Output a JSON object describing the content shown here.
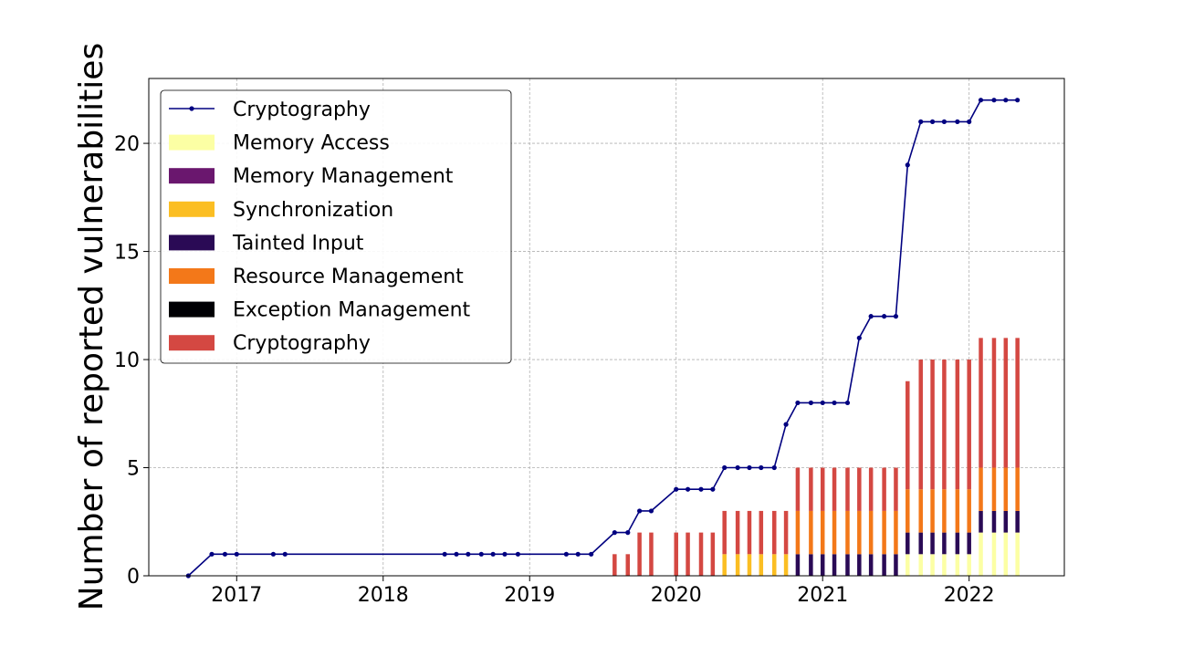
{
  "chart_data": {
    "type": "bar",
    "title": "",
    "xlabel": "",
    "ylabel": "Number of reported vulnerabilities",
    "xlim": [
      2016.4,
      2022.65
    ],
    "ylim": [
      0,
      23
    ],
    "x_ticks": [
      2017,
      2018,
      2019,
      2020,
      2021,
      2022
    ],
    "y_ticks": [
      0,
      5,
      10,
      15,
      20
    ],
    "grid": true,
    "legend_position": "upper-left",
    "line_series": {
      "name": "Cryptography",
      "color": "#000080",
      "points": [
        [
          2016.67,
          0
        ],
        [
          2016.83,
          1
        ],
        [
          2016.92,
          1
        ],
        [
          2017.0,
          1
        ],
        [
          2017.25,
          1
        ],
        [
          2017.33,
          1
        ],
        [
          2018.42,
          1
        ],
        [
          2018.5,
          1
        ],
        [
          2018.58,
          1
        ],
        [
          2018.67,
          1
        ],
        [
          2018.75,
          1
        ],
        [
          2018.83,
          1
        ],
        [
          2018.92,
          1
        ],
        [
          2019.25,
          1
        ],
        [
          2019.33,
          1
        ],
        [
          2019.42,
          1
        ],
        [
          2019.58,
          2
        ],
        [
          2019.67,
          2
        ],
        [
          2019.75,
          3
        ],
        [
          2019.83,
          3
        ],
        [
          2020.0,
          4
        ],
        [
          2020.08,
          4
        ],
        [
          2020.17,
          4
        ],
        [
          2020.25,
          4
        ],
        [
          2020.33,
          5
        ],
        [
          2020.42,
          5
        ],
        [
          2020.5,
          5
        ],
        [
          2020.58,
          5
        ],
        [
          2020.67,
          5
        ],
        [
          2020.75,
          7
        ],
        [
          2020.83,
          8
        ],
        [
          2020.92,
          8
        ],
        [
          2021.0,
          8
        ],
        [
          2021.08,
          8
        ],
        [
          2021.17,
          8
        ],
        [
          2021.25,
          11
        ],
        [
          2021.33,
          12
        ],
        [
          2021.42,
          12
        ],
        [
          2021.5,
          12
        ],
        [
          2021.58,
          19
        ],
        [
          2021.67,
          21
        ],
        [
          2021.75,
          21
        ],
        [
          2021.83,
          21
        ],
        [
          2021.92,
          21
        ],
        [
          2022.0,
          21
        ],
        [
          2022.08,
          22
        ],
        [
          2022.17,
          22
        ],
        [
          2022.25,
          22
        ],
        [
          2022.33,
          22
        ]
      ]
    },
    "stack_series": [
      {
        "name": "Memory Access",
        "color": "#fcffa4"
      },
      {
        "name": "Memory Management",
        "color": "#6a176e"
      },
      {
        "name": "Synchronization",
        "color": "#fbbe23"
      },
      {
        "name": "Tainted Input",
        "color": "#2a0a55"
      },
      {
        "name": "Resource Management",
        "color": "#f37819"
      },
      {
        "name": "Exception Management",
        "color": "#000004"
      },
      {
        "name": "Cryptography",
        "color": "#d44842"
      }
    ],
    "bars": [
      {
        "x": 2019.58,
        "values": {
          "Cryptography": 1
        }
      },
      {
        "x": 2019.67,
        "values": {
          "Cryptography": 1
        }
      },
      {
        "x": 2019.75,
        "values": {
          "Cryptography": 2
        }
      },
      {
        "x": 2019.83,
        "values": {
          "Cryptography": 2
        }
      },
      {
        "x": 2020.0,
        "values": {
          "Cryptography": 2
        }
      },
      {
        "x": 2020.08,
        "values": {
          "Cryptography": 2
        }
      },
      {
        "x": 2020.17,
        "values": {
          "Cryptography": 2
        }
      },
      {
        "x": 2020.25,
        "values": {
          "Cryptography": 2
        }
      },
      {
        "x": 2020.33,
        "values": {
          "Synchronization": 1,
          "Cryptography": 2
        }
      },
      {
        "x": 2020.42,
        "values": {
          "Synchronization": 1,
          "Cryptography": 2
        }
      },
      {
        "x": 2020.5,
        "values": {
          "Synchronization": 1,
          "Cryptography": 2
        }
      },
      {
        "x": 2020.58,
        "values": {
          "Synchronization": 1,
          "Cryptography": 2
        }
      },
      {
        "x": 2020.67,
        "values": {
          "Synchronization": 1,
          "Cryptography": 2
        }
      },
      {
        "x": 2020.75,
        "values": {
          "Synchronization": 1,
          "Cryptography": 2
        }
      },
      {
        "x": 2020.83,
        "values": {
          "Tainted Input": 1,
          "Resource Management": 2,
          "Cryptography": 2
        }
      },
      {
        "x": 2020.92,
        "values": {
          "Tainted Input": 1,
          "Resource Management": 2,
          "Cryptography": 2
        }
      },
      {
        "x": 2021.0,
        "values": {
          "Tainted Input": 1,
          "Resource Management": 2,
          "Cryptography": 2
        }
      },
      {
        "x": 2021.08,
        "values": {
          "Tainted Input": 1,
          "Resource Management": 2,
          "Cryptography": 2
        }
      },
      {
        "x": 2021.17,
        "values": {
          "Tainted Input": 1,
          "Resource Management": 2,
          "Cryptography": 2
        }
      },
      {
        "x": 2021.25,
        "values": {
          "Tainted Input": 1,
          "Resource Management": 2,
          "Cryptography": 2
        }
      },
      {
        "x": 2021.33,
        "values": {
          "Tainted Input": 1,
          "Resource Management": 2,
          "Cryptography": 2
        }
      },
      {
        "x": 2021.42,
        "values": {
          "Tainted Input": 1,
          "Resource Management": 2,
          "Cryptography": 2
        }
      },
      {
        "x": 2021.5,
        "values": {
          "Tainted Input": 1,
          "Resource Management": 2,
          "Cryptography": 2
        }
      },
      {
        "x": 2021.58,
        "values": {
          "Memory Access": 1,
          "Tainted Input": 1,
          "Resource Management": 2,
          "Cryptography": 5
        }
      },
      {
        "x": 2021.67,
        "values": {
          "Memory Access": 1,
          "Tainted Input": 1,
          "Resource Management": 2,
          "Cryptography": 6
        }
      },
      {
        "x": 2021.75,
        "values": {
          "Memory Access": 1,
          "Tainted Input": 1,
          "Resource Management": 2,
          "Cryptography": 6
        }
      },
      {
        "x": 2021.83,
        "values": {
          "Memory Access": 1,
          "Tainted Input": 1,
          "Resource Management": 2,
          "Cryptography": 6
        }
      },
      {
        "x": 2021.92,
        "values": {
          "Memory Access": 1,
          "Tainted Input": 1,
          "Resource Management": 2,
          "Cryptography": 6
        }
      },
      {
        "x": 2022.0,
        "values": {
          "Memory Access": 1,
          "Tainted Input": 1,
          "Resource Management": 2,
          "Cryptography": 6
        }
      },
      {
        "x": 2022.08,
        "values": {
          "Memory Access": 2,
          "Tainted Input": 1,
          "Resource Management": 2,
          "Cryptography": 6
        }
      },
      {
        "x": 2022.17,
        "values": {
          "Memory Access": 2,
          "Tainted Input": 1,
          "Resource Management": 2,
          "Cryptography": 6
        }
      },
      {
        "x": 2022.25,
        "values": {
          "Memory Access": 2,
          "Tainted Input": 1,
          "Resource Management": 2,
          "Cryptography": 6
        }
      },
      {
        "x": 2022.33,
        "values": {
          "Memory Access": 2,
          "Tainted Input": 1,
          "Resource Management": 2,
          "Cryptography": 6
        }
      }
    ]
  }
}
